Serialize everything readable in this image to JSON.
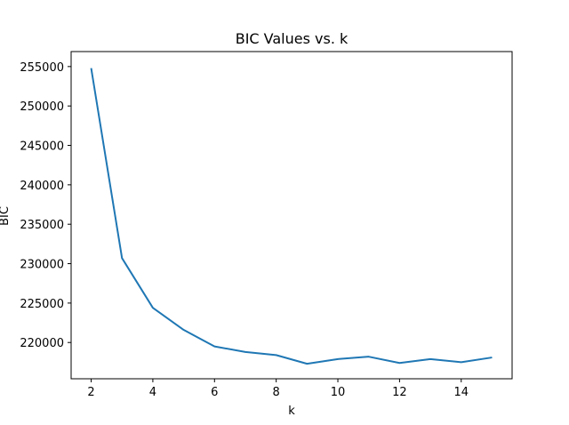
{
  "chart_data": {
    "type": "line",
    "title": "BIC Values vs. k",
    "xlabel": "k",
    "ylabel": "BIC",
    "xlim": [
      1.35,
      15.65
    ],
    "ylim": [
      215400,
      256900
    ],
    "x_ticks": [
      "2",
      "4",
      "6",
      "8",
      "10",
      "12",
      "14"
    ],
    "y_ticks": [
      "220000",
      "225000",
      "230000",
      "235000",
      "240000",
      "245000",
      "250000",
      "255000"
    ],
    "grid": false,
    "legend": "none",
    "series": [
      {
        "color": "#1f77b4",
        "x": [
          2,
          3,
          4,
          5,
          6,
          7,
          8,
          9,
          10,
          11,
          12,
          13,
          14,
          15
        ],
        "y": [
          254800,
          230700,
          224400,
          221600,
          219500,
          218800,
          218400,
          217300,
          217900,
          218200,
          217400,
          217900,
          217500,
          218100
        ]
      }
    ]
  }
}
